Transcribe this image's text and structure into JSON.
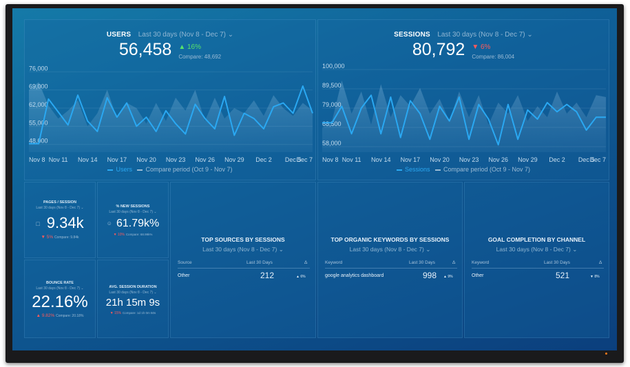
{
  "users": {
    "title": "USERS",
    "period": "Last 30 days (Nov 8 - Dec 7)",
    "value": "56,458",
    "delta": "16%",
    "compare": "Compare: 48,692",
    "legend_main": "Users",
    "legend_compare": "Compare period (Oct 9 - Nov 7)"
  },
  "sessions": {
    "title": "SESSIONS",
    "period": "Last 30 days (Nov 8 - Dec 7)",
    "value": "80,792",
    "delta": "6%",
    "compare": "Compare: 86,004",
    "legend_main": "Sessions",
    "legend_compare": "Compare period (Oct 9 - Nov 7)"
  },
  "pages_session": {
    "title": "PAGES / SESSION",
    "period": "Last 30 days (Nov 8 - Dec 7)",
    "value": "9.34k",
    "delta": "5%",
    "compare": "Compare: 9.84k"
  },
  "new_sessions": {
    "title": "% NEW SESSIONS",
    "period": "Last 30 days (Nov 8 - Dec 7)",
    "value": "61.79k%",
    "delta": "10%",
    "compare": "Compare: 68.99k%"
  },
  "bounce_rate": {
    "title": "BOUNCE RATE",
    "period": "Last 30 days (Nov 8 - Dec 7)",
    "value": "22.16%",
    "delta": "9.82%",
    "compare": "Compare: 20.18%"
  },
  "avg_duration": {
    "title": "AVG. SESSION DURATION",
    "period": "Last 30 days (Nov 8 - Dec 7)",
    "value": "21h 15m 9s",
    "delta": "15%",
    "compare": "Compare: 1d 1h 0m 50s"
  },
  "top_sources": {
    "title": "TOP SOURCES BY SESSIONS",
    "period": "Last 30 days (Nov 8 - Dec 7)",
    "col1": "Source",
    "col2": "Last 30 Days",
    "col3": "Δ",
    "row": {
      "name": "Other",
      "value": "212",
      "delta": "6%"
    }
  },
  "top_keywords": {
    "title": "TOP ORGANIC KEYWORDS BY SESSIONS",
    "period": "Last 30 days (Nov 8 - Dec 7)",
    "col1": "Keyword",
    "col2": "Last 30 Days",
    "col3": "Δ",
    "row": {
      "name": "google analytics dashboard",
      "value": "998",
      "delta": "9%"
    }
  },
  "goal_completion": {
    "title": "GOAL COMPLETION BY CHANNEL",
    "period": "Last 30 days (Nov 8 - Dec 7)",
    "col1": "Keyword",
    "col2": "Last 30 Days",
    "col3": "Δ",
    "row": {
      "name": "Other",
      "value": "521",
      "delta": "8%"
    }
  },
  "colors": {
    "accent": "#2aa8f2",
    "up": "#57e36b",
    "down": "#ff5a5a"
  },
  "chart_data": [
    {
      "type": "line",
      "title": "USERS",
      "ylim": [
        45000,
        79000
      ],
      "yticks": [
        "76,000",
        "69,000",
        "62,000",
        "55,000",
        "48,000"
      ],
      "ytick_values": [
        76000,
        69000,
        62000,
        55000,
        48000
      ],
      "xticks": [
        "Nov 8",
        "Nov 11",
        "Nov 14",
        "Nov 17",
        "Nov 20",
        "Nov 23",
        "Nov 26",
        "Nov 29",
        "Dec 2",
        "Dec 5",
        "Dec 7"
      ],
      "xtick_index": [
        0,
        3,
        6,
        9,
        12,
        15,
        18,
        21,
        24,
        27,
        29
      ],
      "series": [
        {
          "name": "Users",
          "values": [
            48300,
            48300,
            65500,
            60500,
            55500,
            67000,
            57000,
            53000,
            66000,
            58500,
            64000,
            55000,
            58500,
            53000,
            61000,
            56000,
            52000,
            63500,
            58000,
            54000,
            66500,
            51500,
            60000,
            58000,
            54000,
            62500,
            64000,
            60000,
            70500,
            60000
          ]
        },
        {
          "name": "Compare period (Oct 9 - Nov 7)",
          "values": [
            69000,
            72000,
            63000,
            58000,
            61000,
            65000,
            55000,
            60000,
            69000,
            58000,
            64000,
            62000,
            56000,
            64000,
            57000,
            66000,
            61000,
            69000,
            57000,
            66000,
            58000,
            62000,
            60000,
            65000,
            59000,
            67000,
            62000,
            59000,
            64000,
            61000
          ]
        }
      ]
    },
    {
      "type": "line",
      "title": "SESSIONS",
      "ylim": [
        55000,
        103000
      ],
      "yticks": [
        "100,000",
        "89,500",
        "79,000",
        "68,500",
        "58,000"
      ],
      "ytick_values": [
        100000,
        89500,
        79000,
        68500,
        58000
      ],
      "xticks": [
        "Nov 8",
        "Nov 11",
        "Nov 14",
        "Nov 17",
        "Nov 20",
        "Nov 23",
        "Nov 26",
        "Nov 29",
        "Dec 2",
        "Dec 5",
        "Dec 7"
      ],
      "xtick_index": [
        0,
        3,
        6,
        9,
        12,
        15,
        18,
        21,
        24,
        27,
        29
      ],
      "series": [
        {
          "name": "Sessions",
          "values": [
            71000,
            71000,
            80000,
            65000,
            79000,
            86000,
            65000,
            85000,
            63000,
            83000,
            76000,
            62000,
            80000,
            72000,
            85000,
            62000,
            81000,
            73000,
            59000,
            81000,
            62000,
            78000,
            73000,
            82000,
            77000,
            81000,
            77000,
            67000,
            74000,
            74000
          ]
        },
        {
          "name": "Compare period (Oct 9 - Nov 7)",
          "values": [
            68000,
            72000,
            94000,
            76000,
            88000,
            70000,
            92000,
            74000,
            86000,
            80000,
            90000,
            76000,
            84000,
            72000,
            88000,
            74000,
            86000,
            70000,
            82000,
            76000,
            86000,
            72000,
            80000,
            74000,
            88000,
            76000,
            82000,
            74000,
            86000,
            85000
          ]
        }
      ]
    }
  ]
}
